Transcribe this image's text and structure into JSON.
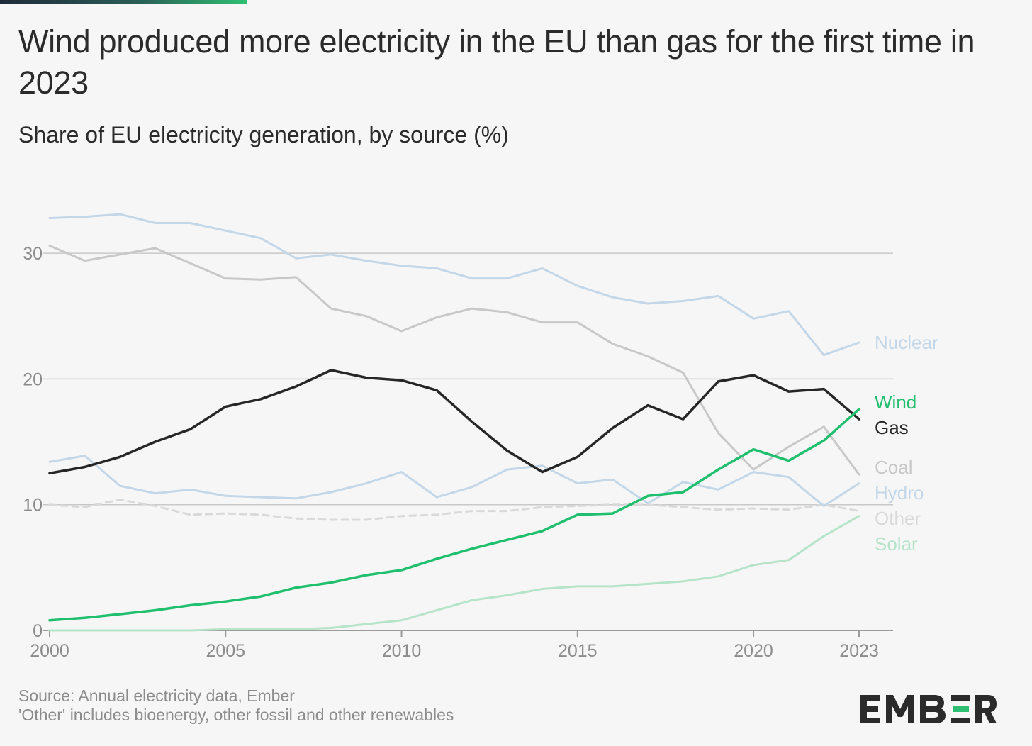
{
  "header": {
    "title": "Wind produced more electricity in the EU than gas for the first time in 2023",
    "subtitle": "Share of EU electricity generation, by source (%)"
  },
  "footer": {
    "source": "Source: Annual electricity data, Ember",
    "note": "'Other' includes bioenergy, other fossil and other renewables"
  },
  "brand": {
    "name": "EMBER",
    "accent": "#2fbf73"
  },
  "chart_data": {
    "type": "line",
    "x": [
      2000,
      2001,
      2002,
      2003,
      2004,
      2005,
      2006,
      2007,
      2008,
      2009,
      2010,
      2011,
      2012,
      2013,
      2014,
      2015,
      2016,
      2017,
      2018,
      2019,
      2020,
      2021,
      2022,
      2023
    ],
    "xticks": [
      "2000",
      "2005",
      "2010",
      "2015",
      "2020",
      "2023"
    ],
    "yticks": [
      "0",
      "10",
      "20",
      "30"
    ],
    "ylim": [
      0,
      35
    ],
    "xlim": [
      2000,
      2023
    ],
    "grid": true,
    "legend": "end-of-line labels on the right",
    "series": [
      {
        "name": "Nuclear",
        "color": "#c3d7e8",
        "dashed": false,
        "width": 3,
        "values": [
          32.8,
          32.9,
          33.1,
          32.4,
          32.4,
          31.8,
          31.2,
          29.6,
          29.9,
          29.4,
          29.0,
          28.8,
          28.0,
          28.0,
          28.8,
          27.4,
          26.5,
          26.0,
          26.2,
          26.6,
          24.8,
          25.4,
          21.9,
          22.9
        ]
      },
      {
        "name": "Coal",
        "color": "#c8c8c8",
        "dashed": false,
        "width": 3,
        "values": [
          30.6,
          29.4,
          29.9,
          30.4,
          29.2,
          28.0,
          27.9,
          28.1,
          25.6,
          25.0,
          23.8,
          24.9,
          25.6,
          25.3,
          24.5,
          24.5,
          22.8,
          21.8,
          20.5,
          15.7,
          12.8,
          14.6,
          16.2,
          12.4
        ]
      },
      {
        "name": "Gas",
        "color": "#262626",
        "dashed": false,
        "width": 3.5,
        "values": [
          12.5,
          13.0,
          13.8,
          15.0,
          16.0,
          17.8,
          18.4,
          19.4,
          20.7,
          20.1,
          19.9,
          19.1,
          16.6,
          14.3,
          12.6,
          13.8,
          16.1,
          17.9,
          16.8,
          19.8,
          20.3,
          19.0,
          19.2,
          16.8
        ]
      },
      {
        "name": "Wind",
        "color": "#1fbf6e",
        "dashed": false,
        "width": 3.5,
        "values": [
          0.8,
          1.0,
          1.3,
          1.6,
          2.0,
          2.3,
          2.7,
          3.4,
          3.8,
          4.4,
          4.8,
          5.7,
          6.5,
          7.2,
          7.9,
          9.2,
          9.3,
          10.7,
          11.0,
          12.8,
          14.4,
          13.5,
          15.1,
          17.6
        ]
      },
      {
        "name": "Hydro",
        "color": "#c3d7e8",
        "dashed": false,
        "width": 3,
        "values": [
          13.4,
          13.9,
          11.5,
          10.9,
          11.2,
          10.7,
          10.6,
          10.5,
          11.0,
          11.7,
          12.6,
          10.6,
          11.4,
          12.8,
          13.1,
          11.7,
          12.0,
          10.1,
          11.8,
          11.2,
          12.6,
          12.2,
          9.9,
          11.7
        ]
      },
      {
        "name": "Other",
        "color": "#d9d9d9",
        "dashed": true,
        "width": 3,
        "values": [
          10.0,
          9.8,
          10.4,
          9.9,
          9.2,
          9.3,
          9.2,
          8.9,
          8.8,
          8.8,
          9.1,
          9.2,
          9.5,
          9.5,
          9.8,
          9.9,
          10.0,
          10.0,
          9.8,
          9.6,
          9.7,
          9.6,
          10.0,
          9.5
        ]
      },
      {
        "name": "Solar",
        "color": "#b5e4c9",
        "dashed": false,
        "width": 3,
        "values": [
          0.0,
          0.0,
          0.0,
          0.0,
          0.0,
          0.1,
          0.1,
          0.1,
          0.2,
          0.5,
          0.8,
          1.6,
          2.4,
          2.8,
          3.3,
          3.5,
          3.5,
          3.7,
          3.9,
          4.3,
          5.2,
          5.6,
          7.5,
          9.1
        ]
      }
    ],
    "label_order": [
      "Nuclear",
      "Wind",
      "Gas",
      "Coal",
      "Hydro",
      "Other",
      "Solar"
    ],
    "label_colors": {
      "Nuclear": "#c3d7e8",
      "Wind": "#1fbf6e",
      "Gas": "#262626",
      "Coal": "#c8c8c8",
      "Hydro": "#c3d7e8",
      "Other": "#d9d9d9",
      "Solar": "#b5e4c9"
    }
  }
}
